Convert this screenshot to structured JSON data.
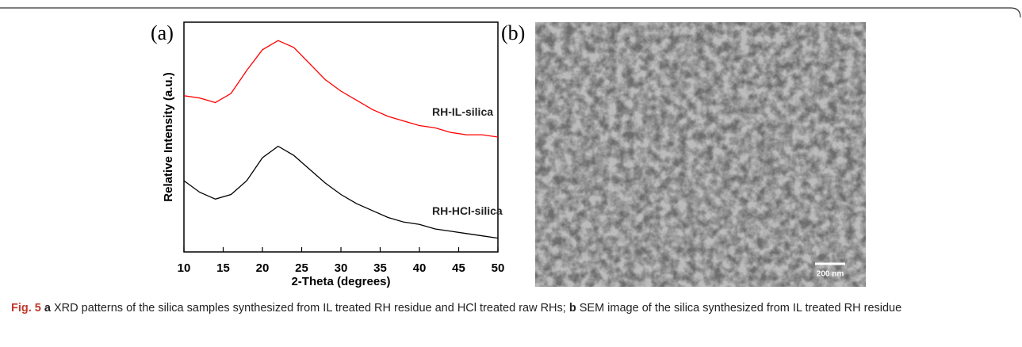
{
  "chart_data": {
    "type": "line",
    "panel_label": "(a)",
    "x_label": "2-Theta (degrees)",
    "y_label": "Relative Intensity (a.u.)",
    "x": [
      10,
      12,
      14,
      16,
      18,
      20,
      22,
      24,
      26,
      28,
      30,
      32,
      34,
      36,
      38,
      40,
      42,
      44,
      46,
      48,
      50
    ],
    "series": [
      {
        "name": "RH-IL-silica",
        "color": "#ff0000",
        "values": [
          68,
          67,
          65,
          69,
          79,
          88,
          92,
          89,
          82,
          75,
          70,
          66,
          62,
          59,
          57,
          55,
          54,
          52,
          51,
          51,
          50
        ]
      },
      {
        "name": "RH-HCl-silica",
        "color": "#000000",
        "values": [
          31,
          26,
          23,
          25,
          31,
          41,
          46,
          42,
          36,
          30,
          25,
          21,
          18,
          15,
          13,
          12,
          10,
          9,
          8,
          7,
          6
        ]
      }
    ],
    "xlim": [
      10,
      50
    ],
    "xticks": [
      10,
      15,
      20,
      25,
      30,
      35,
      40,
      45,
      50
    ],
    "ylim": [
      0,
      100
    ]
  },
  "image": {
    "panel_label": "(b)",
    "scale_bar": "200 nm"
  },
  "caption": {
    "label": "Fig. 5",
    "a": "a",
    "a_text": "XRD patterns of the silica samples synthesized from IL treated RH residue and HCl treated raw RHs;",
    "b": "b",
    "b_text": "SEM image of the silica synthesized from IL treated RH residue"
  }
}
